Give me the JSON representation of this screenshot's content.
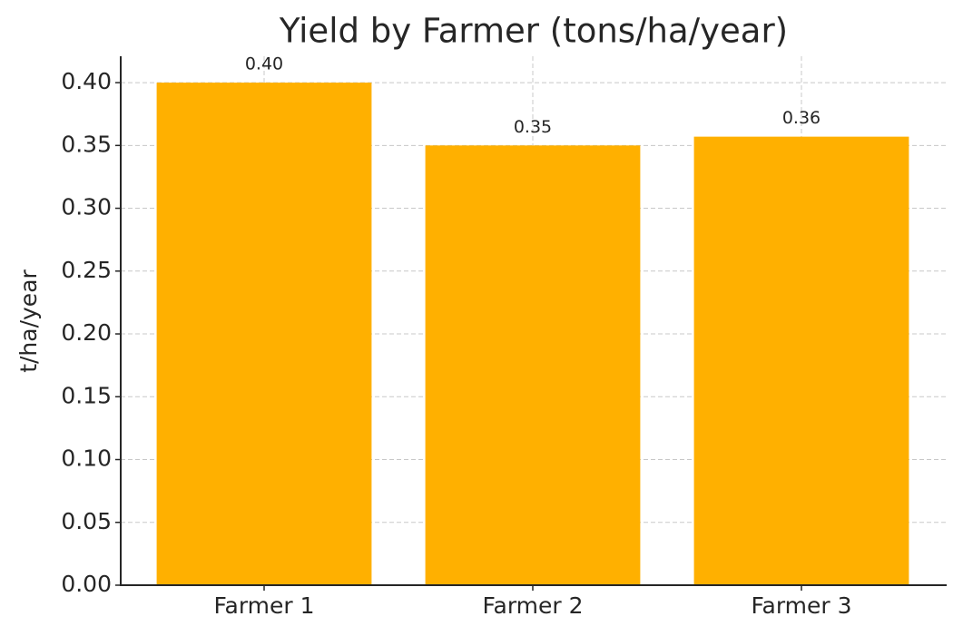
{
  "chart_data": {
    "type": "bar",
    "title": "Yield by Farmer (tons/ha/year)",
    "y_label": "t/ha/year",
    "categories": [
      "Farmer 1",
      "Farmer 2",
      "Farmer 3"
    ],
    "values": [
      0.4,
      0.35,
      0.357
    ],
    "value_labels": [
      "0.40",
      "0.35",
      "0.36"
    ],
    "color": "#ffb000",
    "ylim": [
      0,
      0.421
    ],
    "yticks": [
      {
        "value": 0,
        "label": "0.00"
      },
      {
        "value": 0.05,
        "label": "0.05"
      },
      {
        "value": 0.1,
        "label": "0.10"
      },
      {
        "value": 0.15,
        "label": "0.15"
      },
      {
        "value": 0.2,
        "label": "0.20"
      },
      {
        "value": 0.25,
        "label": "0.25"
      },
      {
        "value": 0.3,
        "label": "0.30"
      },
      {
        "value": 0.35,
        "label": "0.35"
      },
      {
        "value": 0.4,
        "label": "0.40"
      }
    ],
    "grid": true
  }
}
